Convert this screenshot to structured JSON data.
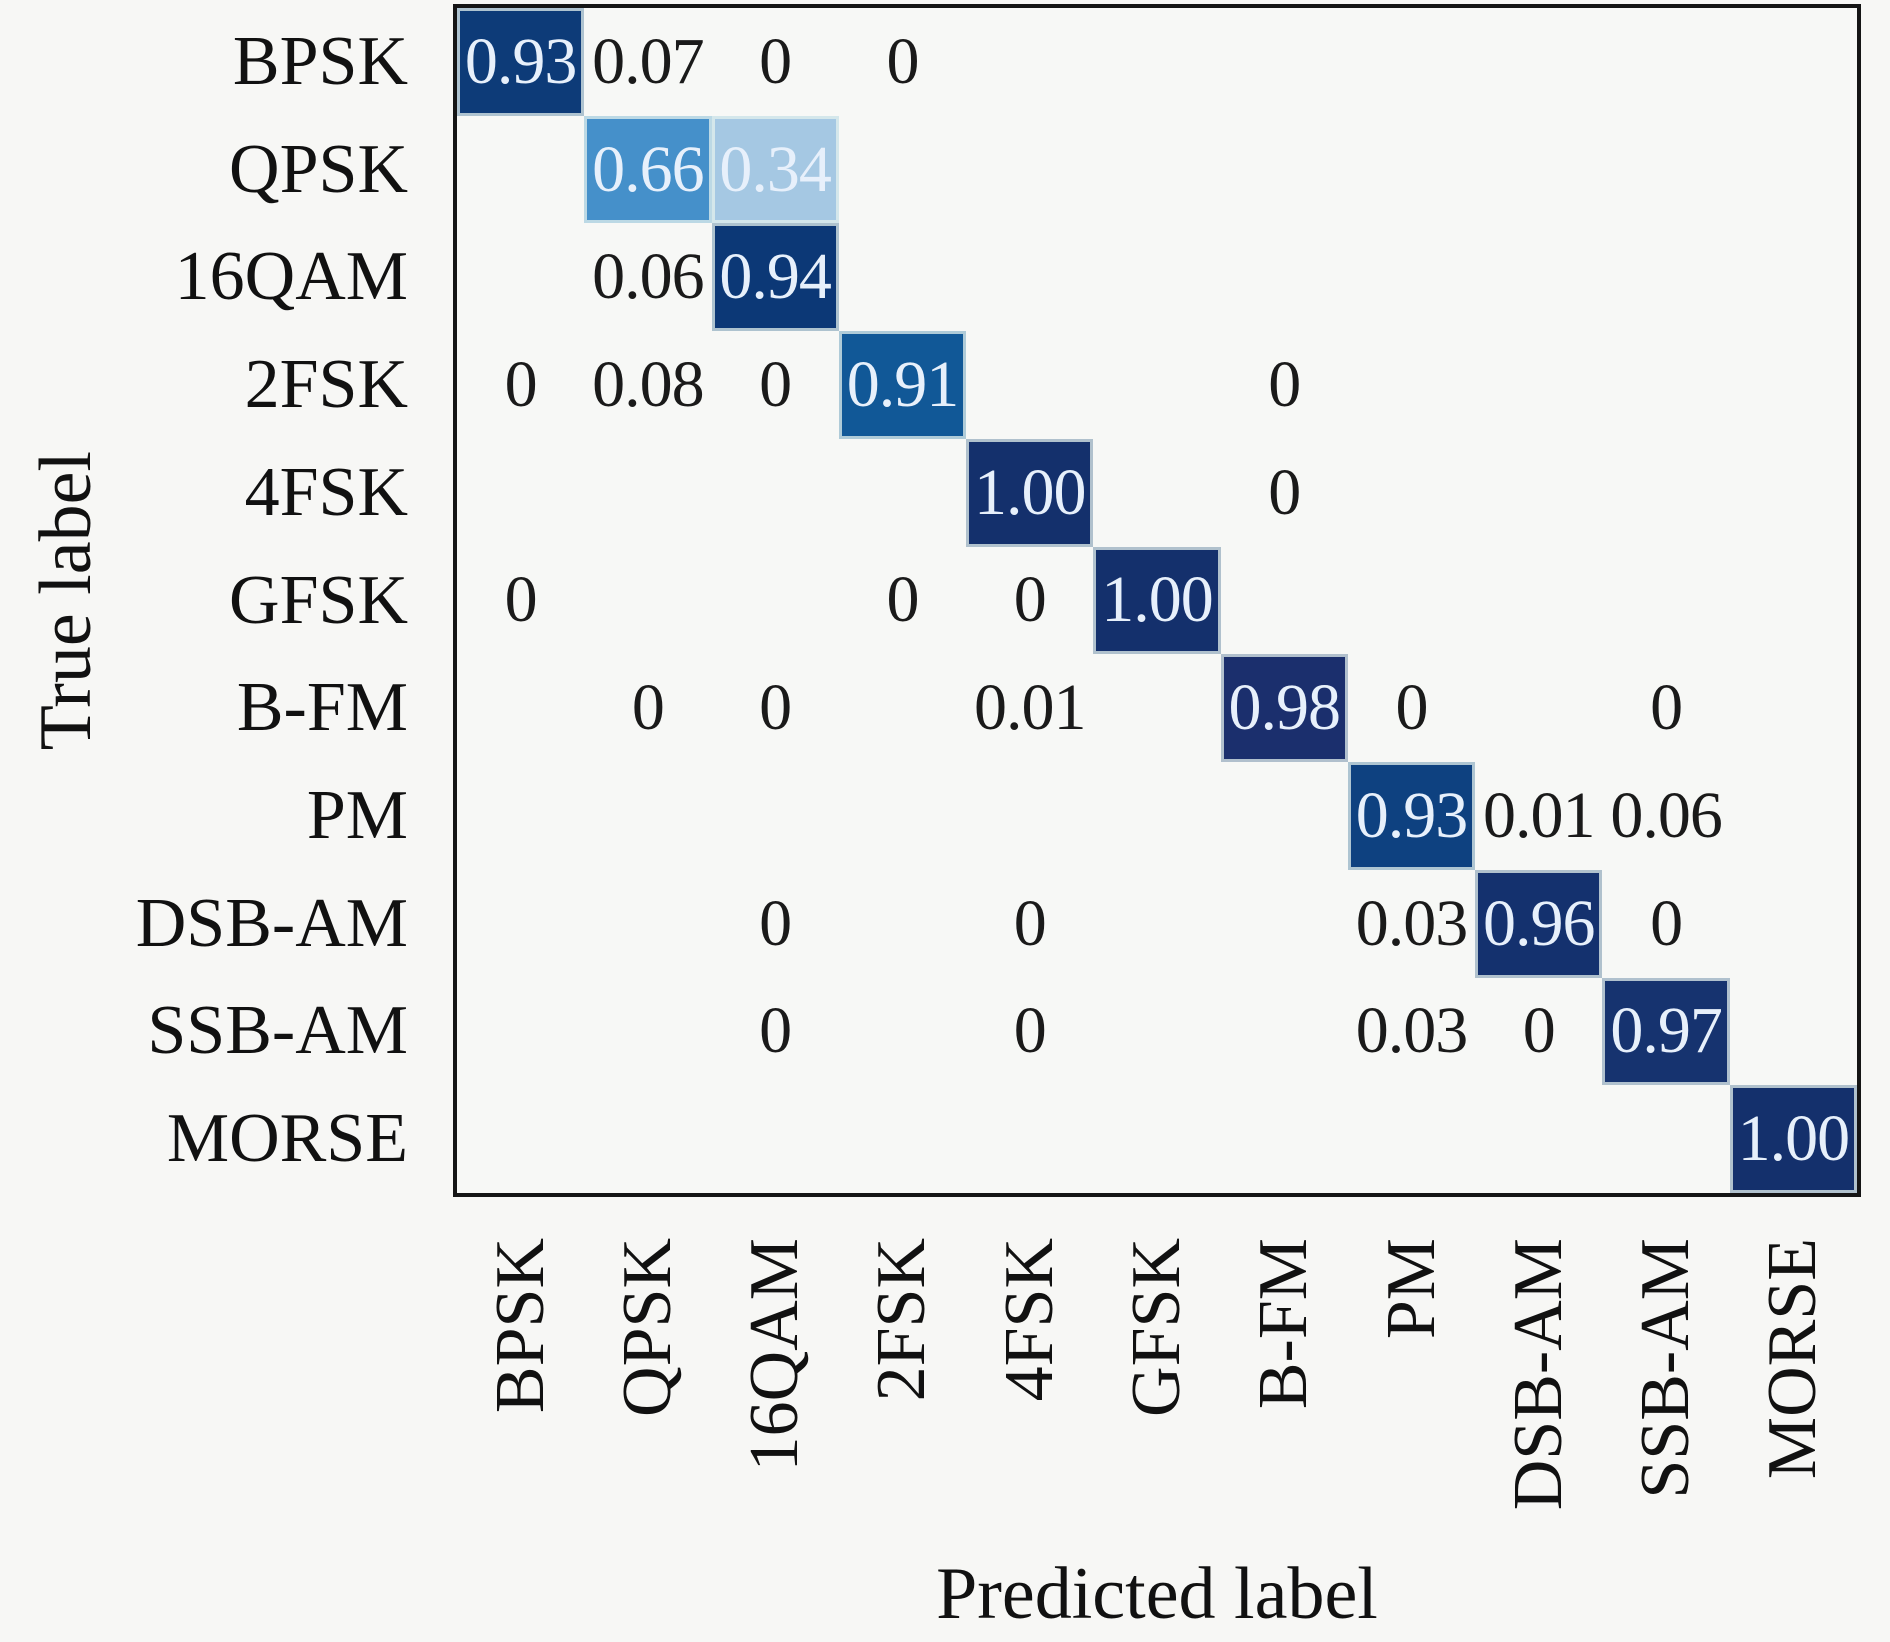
{
  "chart_data": {
    "type": "heatmap",
    "title": "",
    "xlabel": "Predicted label",
    "ylabel": "True label",
    "colormap": "Blues",
    "grid": false,
    "categories_x": [
      "BPSK",
      "QPSK",
      "16QAM",
      "2FSK",
      "4FSK",
      "GFSK",
      "B-FM",
      "PM",
      "DSB-AM",
      "SSB-AM",
      "MORSE"
    ],
    "categories_y": [
      "BPSK",
      "QPSK",
      "16QAM",
      "2FSK",
      "4FSK",
      "GFSK",
      "B-FM",
      "PM",
      "DSB-AM",
      "SSB-AM",
      "MORSE"
    ],
    "matrix": [
      [
        0.93,
        0.07,
        0,
        0,
        null,
        null,
        null,
        null,
        null,
        null,
        null
      ],
      [
        null,
        0.66,
        0.34,
        null,
        null,
        null,
        null,
        null,
        null,
        null,
        null
      ],
      [
        null,
        0.06,
        0.94,
        null,
        null,
        null,
        null,
        null,
        null,
        null,
        null
      ],
      [
        0,
        0.08,
        0,
        0.91,
        null,
        null,
        0,
        null,
        null,
        null,
        null
      ],
      [
        null,
        null,
        null,
        null,
        1.0,
        null,
        0,
        null,
        null,
        null,
        null
      ],
      [
        0,
        null,
        null,
        0,
        0,
        1.0,
        null,
        null,
        null,
        null,
        null
      ],
      [
        null,
        0,
        0,
        null,
        0.01,
        null,
        0.98,
        0,
        null,
        0,
        null
      ],
      [
        null,
        null,
        null,
        null,
        null,
        null,
        null,
        0.93,
        0.01,
        0.06,
        null
      ],
      [
        null,
        null,
        0,
        null,
        0,
        null,
        null,
        0.03,
        0.96,
        0,
        null
      ],
      [
        null,
        null,
        0,
        null,
        0,
        null,
        null,
        0.03,
        0,
        0.97,
        null
      ],
      [
        null,
        null,
        null,
        null,
        null,
        null,
        null,
        null,
        null,
        null,
        1.0
      ]
    ],
    "cells": [
      {
        "r": 0,
        "c": 0,
        "v": "0.93",
        "bg": "#0d3b78"
      },
      {
        "r": 0,
        "c": 1,
        "v": "0.07"
      },
      {
        "r": 0,
        "c": 2,
        "v": "0"
      },
      {
        "r": 0,
        "c": 3,
        "v": "0"
      },
      {
        "r": 1,
        "c": 1,
        "v": "0.66",
        "bg": "#4590ca"
      },
      {
        "r": 1,
        "c": 2,
        "v": "0.34",
        "bg": "#a5c8e3"
      },
      {
        "r": 2,
        "c": 1,
        "v": "0.06"
      },
      {
        "r": 2,
        "c": 2,
        "v": "0.94",
        "bg": "#0c3876"
      },
      {
        "r": 3,
        "c": 0,
        "v": "0"
      },
      {
        "r": 3,
        "c": 1,
        "v": "0.08"
      },
      {
        "r": 3,
        "c": 2,
        "v": "0"
      },
      {
        "r": 3,
        "c": 3,
        "v": "0.91",
        "bg": "#115897"
      },
      {
        "r": 3,
        "c": 6,
        "v": "0"
      },
      {
        "r": 4,
        "c": 4,
        "v": "1.00",
        "bg": "#14306c"
      },
      {
        "r": 4,
        "c": 6,
        "v": "0"
      },
      {
        "r": 5,
        "c": 0,
        "v": "0"
      },
      {
        "r": 5,
        "c": 3,
        "v": "0"
      },
      {
        "r": 5,
        "c": 4,
        "v": "0"
      },
      {
        "r": 5,
        "c": 5,
        "v": "1.00",
        "bg": "#14306c"
      },
      {
        "r": 6,
        "c": 1,
        "v": "0"
      },
      {
        "r": 6,
        "c": 2,
        "v": "0"
      },
      {
        "r": 6,
        "c": 4,
        "v": "0.01"
      },
      {
        "r": 6,
        "c": 6,
        "v": "0.98",
        "bg": "#1b2f6d"
      },
      {
        "r": 6,
        "c": 7,
        "v": "0"
      },
      {
        "r": 6,
        "c": 9,
        "v": "0"
      },
      {
        "r": 7,
        "c": 7,
        "v": "0.93",
        "bg": "#0e4180"
      },
      {
        "r": 7,
        "c": 8,
        "v": "0.01"
      },
      {
        "r": 7,
        "c": 9,
        "v": "0.06"
      },
      {
        "r": 8,
        "c": 2,
        "v": "0"
      },
      {
        "r": 8,
        "c": 4,
        "v": "0"
      },
      {
        "r": 8,
        "c": 7,
        "v": "0.03"
      },
      {
        "r": 8,
        "c": 8,
        "v": "0.96",
        "bg": "#14316e"
      },
      {
        "r": 8,
        "c": 9,
        "v": "0"
      },
      {
        "r": 9,
        "c": 2,
        "v": "0"
      },
      {
        "r": 9,
        "c": 4,
        "v": "0"
      },
      {
        "r": 9,
        "c": 7,
        "v": "0.03"
      },
      {
        "r": 9,
        "c": 8,
        "v": "0"
      },
      {
        "r": 9,
        "c": 9,
        "v": "0.97",
        "bg": "#16336f"
      },
      {
        "r": 10,
        "c": 10,
        "v": "1.00",
        "bg": "#14306c"
      }
    ]
  },
  "colors": {
    "figure_background": "#f7f7f5",
    "plot_background": "#f7f8f6",
    "spine": "#151515",
    "value_text_dark": "#1a1a1a",
    "value_text_light": "#e7f0fb",
    "cell_edge": "#e4f2ed"
  }
}
